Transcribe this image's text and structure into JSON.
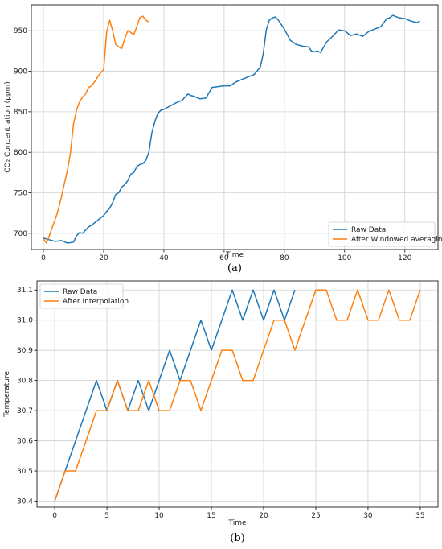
{
  "colors": {
    "raw": "#1f77b4",
    "processed": "#ff7f0e",
    "grid": "#d0d0d0",
    "axis": "#000000"
  },
  "chart_data": [
    {
      "type": "line",
      "caption": "(a)",
      "xlabel": "Time",
      "ylabel": "CO₂ Concentration (ppm)",
      "xlim": [
        -4,
        131
      ],
      "ylim": [
        680,
        982
      ],
      "xticks": [
        0,
        20,
        40,
        60,
        80,
        100,
        120
      ],
      "yticks": [
        700,
        750,
        800,
        850,
        900,
        950
      ],
      "grid": true,
      "legend_position": "lower-right",
      "series": [
        {
          "name": "Raw Data",
          "color": "#1f77b4",
          "x": [
            0,
            2,
            4,
            6,
            8,
            10,
            11,
            12,
            13,
            14,
            15,
            16,
            18,
            20,
            21,
            22,
            23,
            24,
            25,
            26,
            27,
            28,
            29,
            30,
            31,
            32,
            33,
            34,
            35,
            36,
            37,
            38,
            39,
            40,
            42,
            44,
            46,
            48,
            49,
            50,
            52,
            54,
            56,
            58,
            60,
            62,
            64,
            66,
            68,
            70,
            72,
            73,
            74,
            75,
            76,
            77,
            78,
            80,
            82,
            84,
            86,
            88,
            89,
            90,
            91,
            92,
            94,
            96,
            98,
            100,
            102,
            104,
            106,
            108,
            110,
            112,
            114,
            115,
            116,
            118,
            120,
            122,
            124,
            125
          ],
          "y": [
            694,
            692,
            690,
            691,
            688,
            689,
            697,
            701,
            700,
            704,
            708,
            710,
            716,
            722,
            727,
            731,
            738,
            748,
            750,
            757,
            760,
            765,
            773,
            775,
            782,
            785,
            786,
            790,
            800,
            824,
            838,
            848,
            852,
            853,
            857,
            861,
            864,
            872,
            870,
            869,
            866,
            867,
            880,
            881,
            882,
            882,
            887,
            890,
            893,
            896,
            905,
            922,
            951,
            963,
            966,
            967,
            963,
            952,
            938,
            933,
            931,
            930,
            925,
            924,
            925,
            923,
            936,
            943,
            951,
            950,
            944,
            946,
            943,
            949,
            952,
            955,
            965,
            966,
            969,
            966,
            965,
            962,
            960,
            962
          ]
        },
        {
          "name": "After Windowed averaging",
          "color": "#ff7f0e",
          "x": [
            0,
            1,
            2,
            3,
            4,
            5,
            6,
            7,
            8,
            9,
            10,
            11,
            12,
            13,
            14,
            15,
            16,
            17,
            18,
            19,
            20,
            21,
            22,
            23,
            24,
            25,
            26,
            27,
            28,
            29,
            30,
            31,
            32,
            33,
            34,
            35
          ],
          "y": [
            693,
            688,
            697,
            708,
            718,
            730,
            745,
            762,
            778,
            800,
            835,
            852,
            862,
            868,
            872,
            880,
            882,
            887,
            893,
            898,
            902,
            948,
            963,
            950,
            933,
            930,
            928,
            940,
            950,
            948,
            945,
            955,
            966,
            968,
            963,
            961
          ]
        }
      ]
    },
    {
      "type": "line",
      "caption": "(b)",
      "xlabel": "Time",
      "ylabel": "Temperature",
      "xlim": [
        -1.7,
        36.7
      ],
      "ylim": [
        30.38,
        31.13
      ],
      "xticks": [
        0,
        5,
        10,
        15,
        20,
        25,
        30,
        35
      ],
      "yticks": [
        30.4,
        30.5,
        30.6,
        30.7,
        30.8,
        30.9,
        31.0,
        31.1
      ],
      "grid": true,
      "legend_position": "top-left",
      "series": [
        {
          "name": "Raw Data",
          "color": "#1f77b4",
          "x": [
            0,
            1,
            2,
            3,
            4,
            5,
            6,
            7,
            8,
            9,
            10,
            11,
            12,
            13,
            14,
            15,
            16,
            17,
            18,
            19,
            20,
            21,
            22,
            23
          ],
          "y": [
            30.4,
            30.5,
            30.6,
            30.7,
            30.8,
            30.7,
            30.8,
            30.7,
            30.8,
            30.7,
            30.8,
            30.9,
            30.8,
            30.9,
            31.0,
            30.9,
            31.0,
            31.1,
            31.0,
            31.1,
            31.0,
            31.1,
            31.0,
            31.1
          ]
        },
        {
          "name": "After Interpolation",
          "color": "#ff7f0e",
          "x": [
            0,
            1,
            2,
            3,
            4,
            5,
            6,
            7,
            8,
            9,
            10,
            11,
            12,
            13,
            14,
            15,
            16,
            17,
            18,
            19,
            20,
            21,
            22,
            23,
            24,
            25,
            26,
            27,
            28,
            29,
            30,
            31,
            32,
            33,
            34,
            35
          ],
          "y": [
            30.4,
            30.5,
            30.5,
            30.6,
            30.7,
            30.7,
            30.8,
            30.7,
            30.7,
            30.8,
            30.7,
            30.7,
            30.8,
            30.8,
            30.7,
            30.8,
            30.9,
            30.9,
            30.8,
            30.8,
            30.9,
            31.0,
            31.0,
            30.9,
            31.0,
            31.1,
            31.1,
            31.0,
            31.0,
            31.1,
            31.0,
            31.0,
            31.1,
            31.0,
            31.0,
            31.1
          ]
        }
      ]
    }
  ]
}
